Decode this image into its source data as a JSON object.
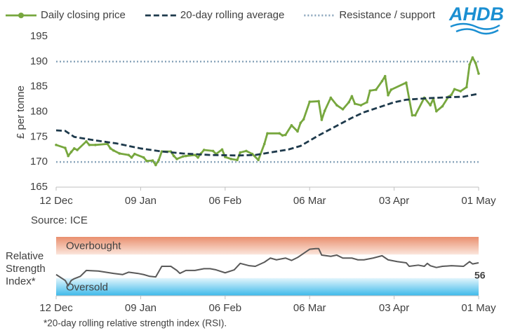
{
  "logo": "AHDB",
  "chart_data": [
    {
      "type": "line",
      "legend": "top",
      "ylabel": "£ per tonne",
      "source": "Source: ICE",
      "xlim": [
        0,
        140
      ],
      "xticks": [
        {
          "value": 0,
          "label": "12 Dec"
        },
        {
          "value": 28,
          "label": "09 Jan"
        },
        {
          "value": 56,
          "label": "06 Feb"
        },
        {
          "value": 84,
          "label": "06 Mar"
        },
        {
          "value": 112,
          "label": "03 Apr"
        },
        {
          "value": 140,
          "label": "01 May"
        }
      ],
      "ylim": [
        165,
        195
      ],
      "yticks": [
        165,
        170,
        175,
        180,
        185,
        190,
        195
      ],
      "series": [
        {
          "name": "Daily closing price",
          "color": "#77a73e",
          "style": "solid-markers",
          "x": [
            0,
            3,
            4,
            5,
            6,
            7,
            10,
            11,
            13,
            17,
            18,
            19,
            21,
            24,
            25,
            26,
            29,
            30,
            32,
            33,
            34,
            35,
            38,
            39,
            40,
            42,
            43,
            46,
            47,
            48,
            49,
            52,
            53,
            55,
            56,
            58,
            60,
            61,
            63,
            65,
            67,
            69,
            70,
            74,
            75,
            76,
            78,
            80,
            81,
            82,
            84,
            87,
            88,
            89,
            91,
            93,
            95,
            97,
            98,
            99,
            101,
            103,
            104,
            106,
            108,
            109,
            110,
            111,
            116,
            118,
            119,
            122,
            124,
            125,
            126,
            128,
            130,
            131,
            132,
            134,
            136,
            137,
            138,
            139,
            140
          ],
          "values": [
            173.4,
            172.8,
            171.2,
            172,
            172.7,
            172.4,
            174.1,
            173.4,
            173.4,
            173.6,
            172.7,
            172.3,
            171.7,
            171.4,
            170.9,
            171.6,
            170.9,
            170.2,
            170.3,
            169.4,
            170.4,
            172.1,
            172.1,
            171.2,
            170.6,
            171.1,
            171.2,
            171.4,
            170.9,
            171.7,
            172.4,
            172.2,
            171.6,
            172.5,
            171,
            170.6,
            170.4,
            171.9,
            172.2,
            171.6,
            170.4,
            173.6,
            175.7,
            175.7,
            175.3,
            175.4,
            177.3,
            176.1,
            177.8,
            178.5,
            182,
            182.1,
            178.4,
            180.2,
            182.8,
            181.3,
            180.5,
            181.9,
            183.1,
            181.6,
            181.3,
            181.9,
            184.2,
            184.4,
            186.1,
            187.1,
            183.3,
            184.4,
            185.8,
            179.3,
            179.3,
            182.8,
            181.3,
            182.6,
            180.1,
            181.1,
            183,
            183.4,
            184.5,
            184.1,
            184.9,
            189.4,
            190.8,
            189.7,
            187.6
          ]
        },
        {
          "name": "20-day rolling average",
          "color": "#1e3a4c",
          "style": "dashed",
          "x": [
            0,
            3,
            6,
            13,
            20,
            28,
            35,
            42,
            51,
            60,
            66,
            71,
            77,
            81,
            87,
            92,
            98,
            102,
            107,
            112,
            116,
            123,
            130,
            135,
            140
          ],
          "values": [
            176.3,
            176.2,
            175,
            174.3,
            173.7,
            172.7,
            172.1,
            171.7,
            171.4,
            171.3,
            171.4,
            171.9,
            172.5,
            173.2,
            175.3,
            176.9,
            178.8,
            179.9,
            180.9,
            181.9,
            182.4,
            182.7,
            182.9,
            183,
            183.6
          ]
        }
      ],
      "reference_lines": {
        "name": "Resistance / support",
        "color": "#8aa5bb",
        "style": "dotted",
        "values": [
          190,
          170
        ]
      }
    },
    {
      "type": "line",
      "ylabel": [
        "Relative",
        "Strength",
        "Index*"
      ],
      "footnote": "*20-day rolling relative strength index (RSI).",
      "xlim": [
        0,
        140
      ],
      "xticks": [
        {
          "value": 0,
          "label": "12 Dec"
        },
        {
          "value": 28,
          "label": "09 Jan"
        },
        {
          "value": 56,
          "label": "06 Feb"
        },
        {
          "value": 84,
          "label": "06 Mar"
        },
        {
          "value": 112,
          "label": "03 Apr"
        },
        {
          "value": 140,
          "label": "01 May"
        }
      ],
      "ylim": [
        0,
        100
      ],
      "bands": [
        {
          "label": "Overbought",
          "from": 70,
          "to": 100
        },
        {
          "label": "Oversold",
          "from": 0,
          "to": 30
        }
      ],
      "series": [
        {
          "color": "#595959",
          "style": "solid",
          "x": [
            0,
            3,
            4,
            5,
            6,
            8,
            10,
            14,
            19,
            22,
            24,
            27,
            29,
            31,
            33,
            35,
            38,
            40,
            41,
            43,
            46,
            49,
            51,
            53,
            56,
            59,
            61,
            64,
            66,
            69,
            71,
            73,
            76,
            78,
            80,
            84,
            86,
            87,
            88,
            91,
            93,
            95,
            98,
            100,
            102,
            105,
            108,
            110,
            113,
            116,
            117,
            120,
            122,
            123,
            124,
            126,
            128,
            131,
            135,
            137,
            138,
            140
          ],
          "values": [
            36,
            26,
            17,
            26,
            29,
            33,
            43,
            42,
            38,
            36,
            40,
            38,
            36,
            33,
            32,
            50,
            50,
            43,
            38,
            43,
            43,
            46,
            46,
            44,
            39,
            44,
            55,
            51,
            50,
            57,
            64,
            61,
            64,
            60,
            65,
            79,
            80,
            80,
            69,
            67,
            69,
            64,
            64,
            61,
            61,
            64,
            68,
            61,
            58,
            56,
            50,
            52,
            50,
            55,
            51,
            48,
            50,
            51,
            50,
            58,
            54,
            56
          ]
        }
      ]
    }
  ]
}
